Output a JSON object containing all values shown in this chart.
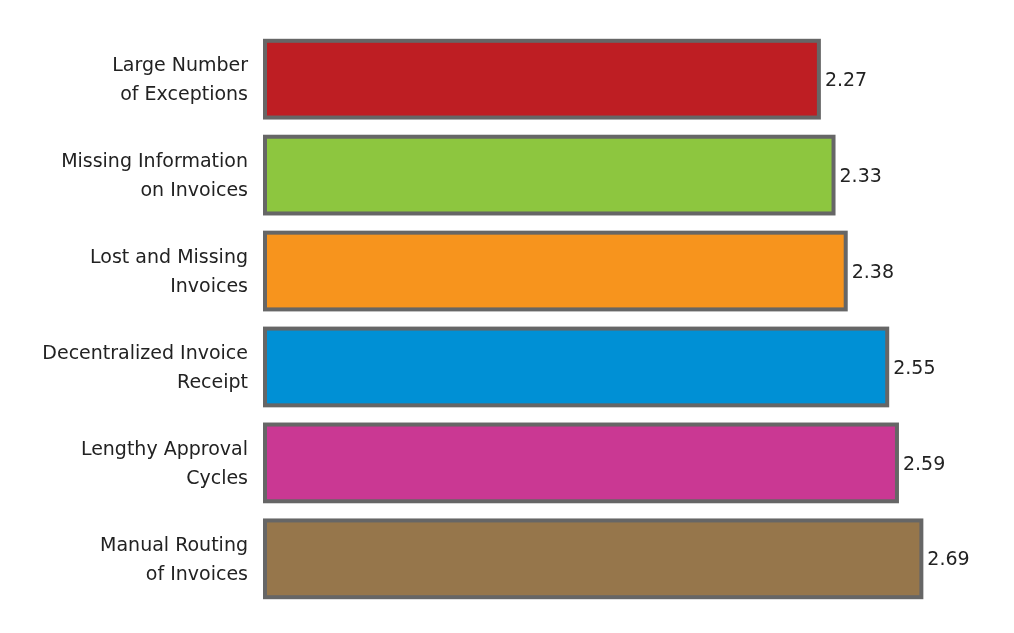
{
  "chart_data": {
    "type": "bar",
    "orientation": "horizontal",
    "categories": [
      "Large Number\nof Exceptions",
      "Missing Information\non Invoices",
      "Lost and Missing\nInvoices",
      "Decentralized Invoice\nReceipt",
      "Lengthy Approval\nCycles",
      "Manual Routing\nof Invoices"
    ],
    "values": [
      2.27,
      2.33,
      2.38,
      2.55,
      2.59,
      2.69
    ],
    "colors": [
      "#be1e23",
      "#8dc63f",
      "#f7941d",
      "#0090d5",
      "#ca3893",
      "#96764b"
    ],
    "data_labels": true
  }
}
